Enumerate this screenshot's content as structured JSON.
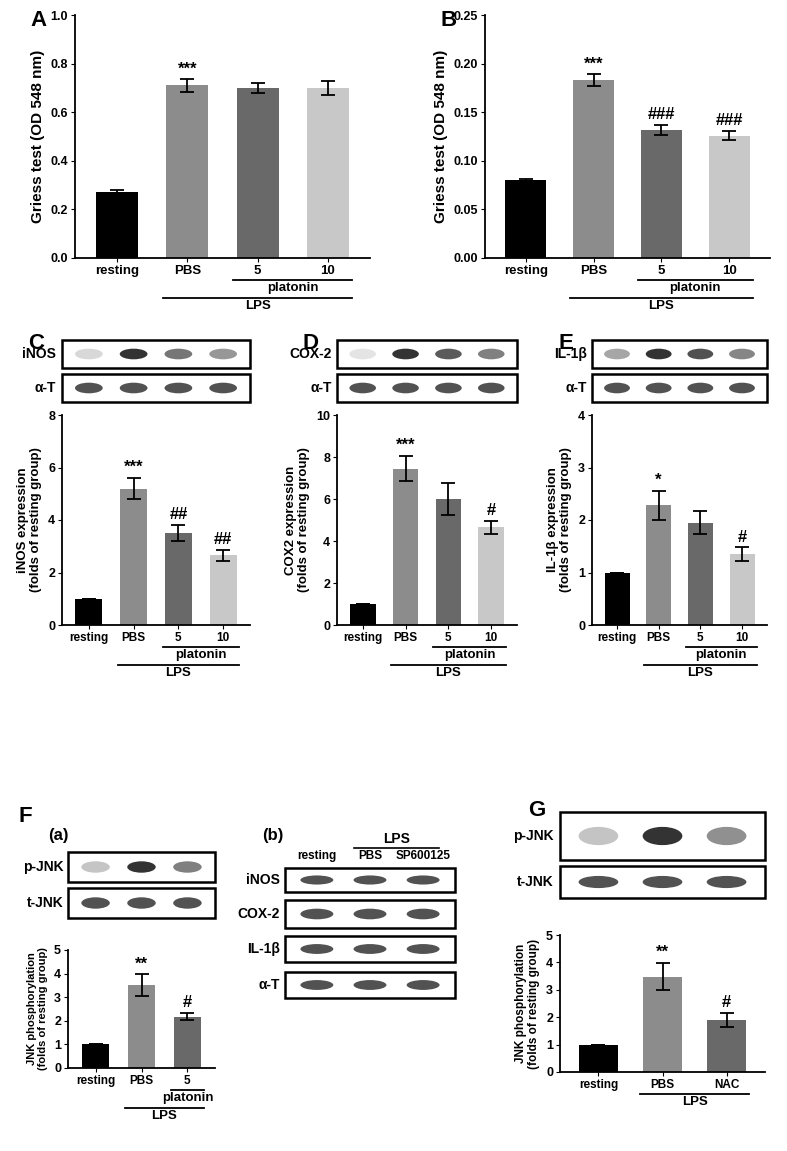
{
  "chart_data": [
    {
      "panel": "A",
      "type": "bar",
      "y_label": "Griess test (OD 548 nm)",
      "categories": [
        "resting",
        "PBS",
        "5",
        "10"
      ],
      "values": [
        0.27,
        0.71,
        0.7,
        0.7
      ],
      "errors": [
        0.008,
        0.025,
        0.022,
        0.028
      ],
      "colors": [
        "#000000",
        "#8c8c8c",
        "#696969",
        "#c8c8c8"
      ],
      "annotations": [
        null,
        "***",
        null,
        null
      ],
      "groups": [
        {
          "label": "platonin",
          "from": 2,
          "to": 3
        },
        {
          "label": "LPS",
          "from": 1,
          "to": 3
        }
      ],
      "ylim": [
        0,
        1.0
      ],
      "yticks": [
        {
          "value": 0,
          "label": "0.0"
        },
        0.2,
        0.4,
        0.6,
        0.8,
        {
          "value": 1.0,
          "label": "1.0"
        }
      ]
    },
    {
      "panel": "B",
      "type": "bar",
      "y_label": "Griess test (OD 548 nm)",
      "categories": [
        "resting",
        "PBS",
        "5",
        "10"
      ],
      "values": [
        0.08,
        0.183,
        0.132,
        0.126
      ],
      "errors": [
        0.001,
        0.006,
        0.005,
        0.005
      ],
      "colors": [
        "#000000",
        "#8c8c8c",
        "#696969",
        "#c8c8c8"
      ],
      "annotations": [
        null,
        "***",
        "###",
        "###"
      ],
      "groups": [
        {
          "label": "platonin",
          "from": 2,
          "to": 3
        },
        {
          "label": "LPS",
          "from": 1,
          "to": 3
        }
      ],
      "ylim": [
        0,
        0.25
      ],
      "yticks": [
        {
          "value": 0,
          "label": "0.00"
        },
        0.05,
        {
          "value": 0.1,
          "label": "0.10"
        },
        0.15,
        {
          "value": 0.2,
          "label": "0.20"
        },
        0.25
      ]
    },
    {
      "panel": "C",
      "type": "bar",
      "y_label": "iNOS expression\n(folds of resting group)",
      "blots": [
        "iNOS",
        "α-T"
      ],
      "categories": [
        "resting",
        "PBS",
        "5",
        "10"
      ],
      "values": [
        1,
        5.2,
        3.5,
        2.65
      ],
      "errors": [
        0,
        0.4,
        0.3,
        0.2
      ],
      "colors": [
        "#000000",
        "#8c8c8c",
        "#696969",
        "#c8c8c8"
      ],
      "annotations": [
        null,
        "***",
        "##",
        "##"
      ],
      "groups": [
        {
          "label": "platonin",
          "from": 2,
          "to": 3
        },
        {
          "label": "LPS",
          "from": 1,
          "to": 3
        }
      ],
      "ylim": [
        0,
        8
      ],
      "yticks": [
        0,
        2,
        4,
        6,
        8
      ]
    },
    {
      "panel": "D",
      "type": "bar",
      "y_label": "COX2 expression\n(folds of resting group)",
      "blots": [
        "COX-2",
        "α-T"
      ],
      "categories": [
        "resting",
        "PBS",
        "5",
        "10"
      ],
      "values": [
        1,
        7.45,
        6.0,
        4.65
      ],
      "errors": [
        0,
        0.6,
        0.75,
        0.3
      ],
      "colors": [
        "#000000",
        "#8c8c8c",
        "#696969",
        "#c8c8c8"
      ],
      "annotations": [
        null,
        "***",
        null,
        "#"
      ],
      "groups": [
        {
          "label": "platonin",
          "from": 2,
          "to": 3
        },
        {
          "label": "LPS",
          "from": 1,
          "to": 3
        }
      ],
      "ylim": [
        0,
        10
      ],
      "yticks": [
        0,
        2,
        4,
        6,
        8,
        10
      ]
    },
    {
      "panel": "E",
      "type": "bar",
      "y_label": "IL-1β expression\n(folds of resting group)",
      "blots": [
        "IL-1β",
        "α-T"
      ],
      "categories": [
        "resting",
        "PBS",
        "5",
        "10"
      ],
      "values": [
        1,
        2.28,
        1.95,
        1.35
      ],
      "errors": [
        0,
        0.28,
        0.22,
        0.13
      ],
      "colors": [
        "#000000",
        "#8c8c8c",
        "#696969",
        "#c8c8c8"
      ],
      "annotations": [
        null,
        "*",
        null,
        "#"
      ],
      "groups": [
        {
          "label": "platonin",
          "from": 2,
          "to": 3
        },
        {
          "label": "LPS",
          "from": 1,
          "to": 3
        }
      ],
      "ylim": [
        0,
        4
      ],
      "yticks": [
        0,
        1,
        2,
        3,
        4
      ]
    },
    {
      "panel": "F",
      "title": "(a)",
      "type": "bar",
      "y_label": "JNK phosphorylation\n(folds of resting group)",
      "blots": [
        "p-JNK",
        "t-JNK"
      ],
      "categories": [
        "resting",
        "PBS",
        "5"
      ],
      "values": [
        1,
        3.5,
        2.18
      ],
      "errors": [
        0,
        0.47,
        0.15
      ],
      "colors": [
        "#000000",
        "#8c8c8c",
        "#696969"
      ],
      "annotations": [
        null,
        "**",
        "#"
      ],
      "groups": [
        {
          "label": "platonin",
          "from": 2,
          "to": 2
        },
        {
          "label": "LPS",
          "from": 1,
          "to": 2
        }
      ],
      "ylim": [
        0,
        5
      ],
      "yticks": [
        0,
        1,
        2,
        3,
        4,
        5
      ]
    },
    {
      "title": "(b)",
      "type": "blot",
      "blots": [
        "iNOS",
        "COX-2",
        "IL-1β",
        "α-T"
      ],
      "categories": [
        "resting",
        "PBS",
        "SP600125"
      ],
      "groups": [
        {
          "label": "LPS",
          "from": 1,
          "to": 2
        }
      ]
    },
    {
      "panel": "G",
      "type": "bar",
      "y_label": "JNK phosphorylation\n(folds of resting group)",
      "blots": [
        "p-JNK",
        "t-JNK"
      ],
      "categories": [
        "resting",
        "PBS",
        "NAC"
      ],
      "values": [
        1,
        3.48,
        1.9
      ],
      "errors": [
        0,
        0.5,
        0.25
      ],
      "colors": [
        "#000000",
        "#8c8c8c",
        "#696969"
      ],
      "annotations": [
        null,
        "**",
        "#"
      ],
      "groups": [
        {
          "label": "LPS",
          "from": 1,
          "to": 2
        }
      ],
      "ylim": [
        0,
        5
      ],
      "yticks": [
        0,
        1,
        2,
        3,
        4,
        5
      ]
    }
  ]
}
